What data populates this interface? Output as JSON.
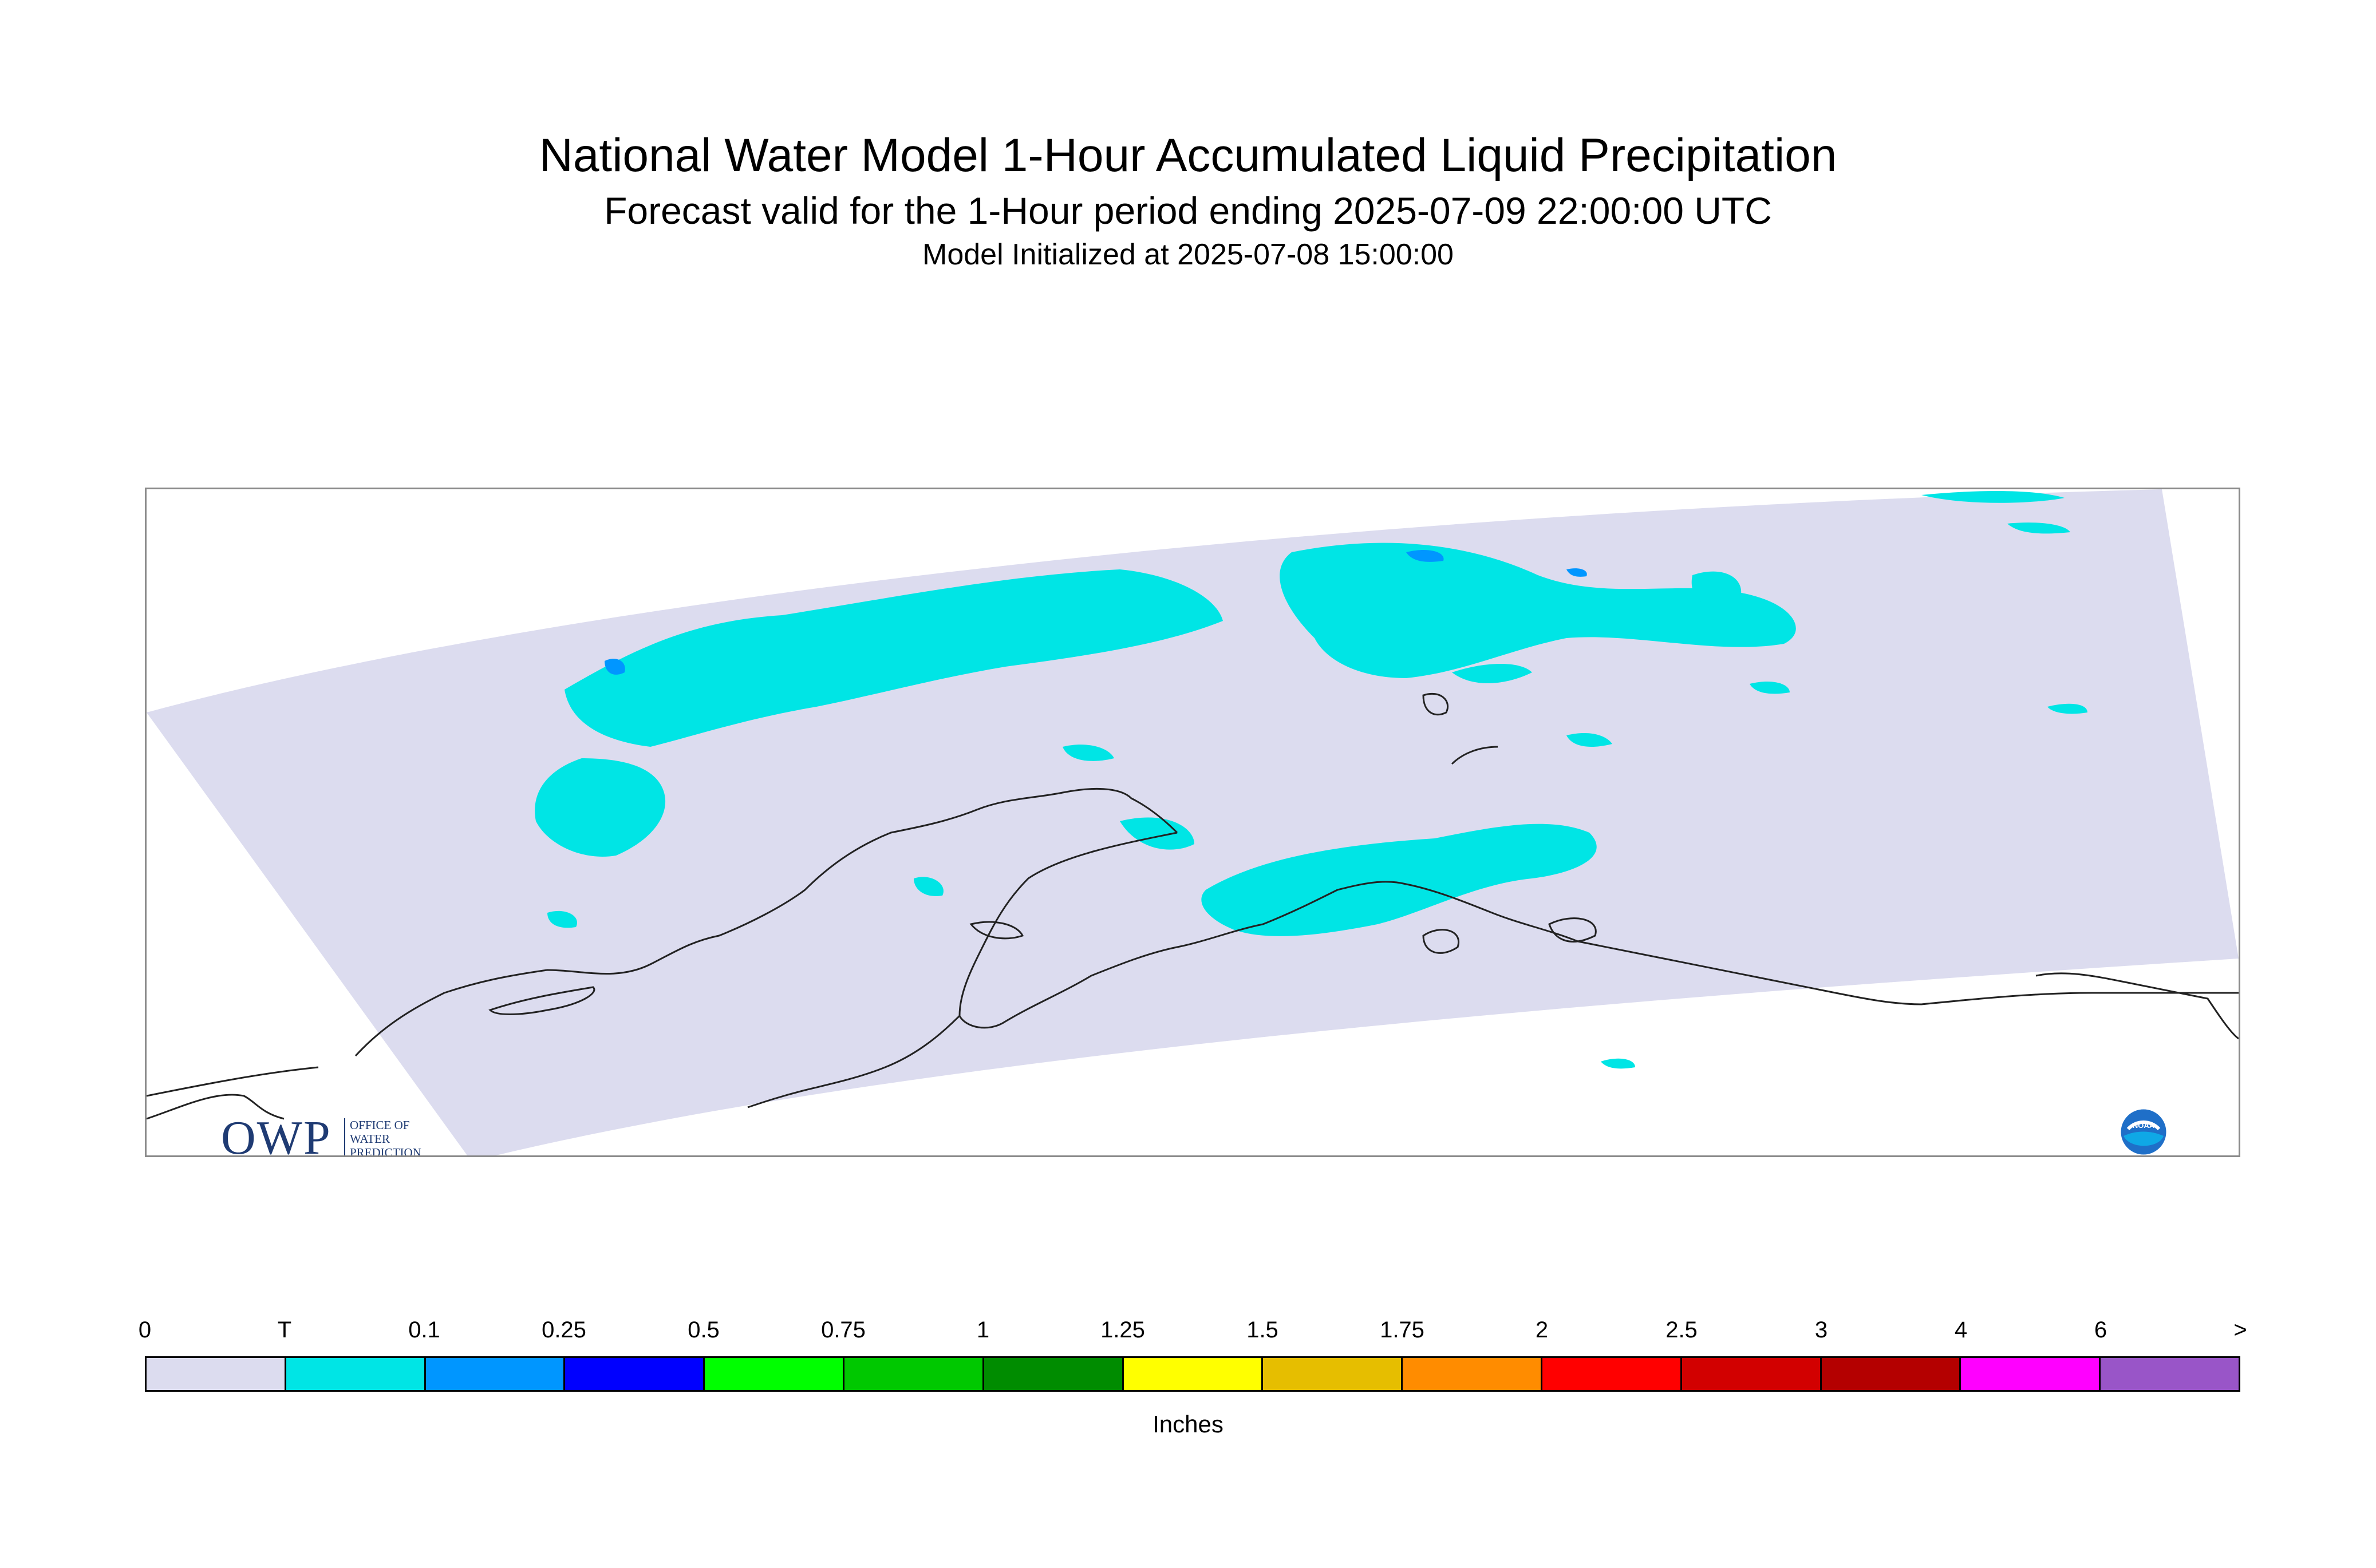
{
  "header": {
    "title": "National Water Model 1-Hour Accumulated Liquid Precipitation",
    "subtitle": "Forecast valid for the 1-Hour period ending 2025-07-09 22:00:00 UTC",
    "init_line": "Model Initialized at 2025-07-08 15:00:00"
  },
  "map": {
    "domain_fill": "#dcdcef",
    "coastline_color": "#222222",
    "precip_trace_color": "#00e5e5",
    "precip_light_color": "#0096ff",
    "logos": {
      "owp": {
        "letters": "OWP",
        "lines": [
          "OFFICE OF",
          "WATER",
          "PREDICTION"
        ]
      },
      "noaa": {
        "icon": "noaa-logo-icon",
        "text": "NOAA"
      }
    }
  },
  "legend": {
    "labels": [
      "0",
      "T",
      "0.1",
      "0.25",
      "0.5",
      "0.75",
      "1",
      "1.25",
      "1.5",
      "1.75",
      "2",
      "2.5",
      "3",
      "4",
      "6",
      ">"
    ],
    "colors": [
      "#dcdcef",
      "#00e5e5",
      "#0096ff",
      "#0000ff",
      "#00ff00",
      "#00c800",
      "#008c00",
      "#ffff00",
      "#e6be00",
      "#ff8c00",
      "#ff0000",
      "#d20000",
      "#b40000",
      "#ff00ff",
      "#9955c8"
    ],
    "unit": "Inches"
  }
}
